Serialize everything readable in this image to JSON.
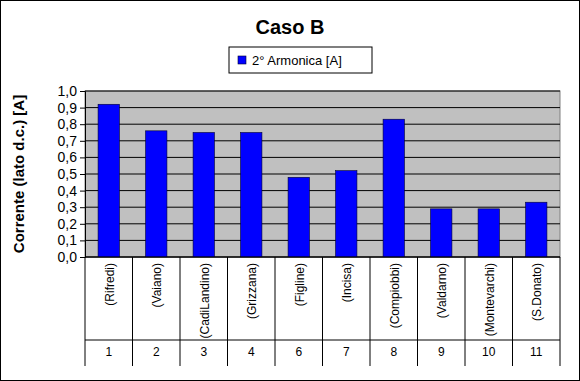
{
  "chart_data": {
    "type": "bar",
    "title": "Caso B",
    "y_label": "Corrente (lato d.c.) [A]",
    "categories": [
      "(Rifredi)",
      "(Vaiano)",
      "(CadiLandino)",
      "(Grizzana)",
      "(Figline)",
      "(Incisa)",
      "(Compiobbi)",
      "(Valdarno)",
      "(Montevarchi)",
      "(S.Donato)"
    ],
    "category_numbers": [
      "1",
      "2",
      "3",
      "4",
      "6",
      "7",
      "8",
      "9",
      "10",
      "11"
    ],
    "series": [
      {
        "name": "2° Armonica [A]",
        "color": "#0000ff",
        "values": [
          0.92,
          0.76,
          0.75,
          0.75,
          0.48,
          0.52,
          0.83,
          0.29,
          0.29,
          0.33
        ]
      }
    ],
    "ylim": [
      0,
      1
    ],
    "yticks": [
      {
        "value": 0,
        "label": "0,0"
      },
      {
        "value": 0.1,
        "label": "0,1"
      },
      {
        "value": 0.2,
        "label": "0,2"
      },
      {
        "value": 0.3,
        "label": "0,3"
      },
      {
        "value": 0.4,
        "label": "0,4"
      },
      {
        "value": 0.5,
        "label": "0,5"
      },
      {
        "value": 0.6,
        "label": "0,6"
      },
      {
        "value": 0.7,
        "label": "0,7"
      },
      {
        "value": 0.8,
        "label": "0,8"
      },
      {
        "value": 0.9,
        "label": "0,9"
      },
      {
        "value": 1,
        "label": "1,0"
      }
    ],
    "grid": true,
    "legend": "top"
  }
}
